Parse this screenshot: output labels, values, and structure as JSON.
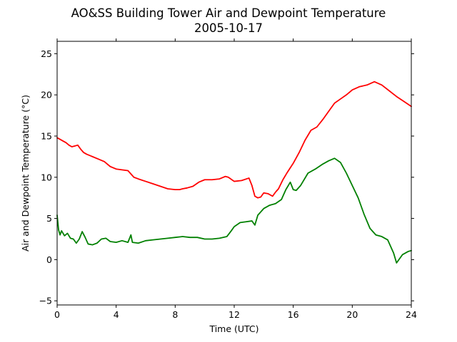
{
  "chart_data": {
    "type": "line",
    "title": "AO&SS Building Tower Air and Dewpoint Temperature",
    "subtitle": "2005-10-17",
    "xlabel": "Time (UTC)",
    "ylabel": "Air and Dewpoint Temperature (°C)",
    "xlim": [
      0,
      24
    ],
    "ylim": [
      -5.5,
      26.5
    ],
    "xticks": [
      0,
      4,
      8,
      12,
      16,
      20,
      24
    ],
    "yticks": [
      -5,
      0,
      5,
      10,
      15,
      20,
      25
    ],
    "grid": false,
    "series": [
      {
        "color": "#ff0000",
        "x": [
          0,
          0.2,
          0.4,
          0.6,
          0.8,
          1.0,
          1.2,
          1.4,
          1.6,
          1.8,
          2.0,
          2.4,
          2.8,
          3.2,
          3.4,
          3.6,
          4.0,
          4.4,
          4.8,
          5.0,
          5.2,
          5.5,
          6.0,
          6.5,
          7.0,
          7.5,
          8.0,
          8.3,
          8.5,
          8.8,
          9.2,
          9.6,
          10.0,
          10.5,
          11.0,
          11.4,
          11.6,
          12.0,
          12.5,
          13.0,
          13.2,
          13.4,
          13.6,
          13.8,
          14.0,
          14.3,
          14.6,
          14.8,
          15.0,
          15.3,
          15.6,
          16.0,
          16.4,
          16.8,
          17.2,
          17.6,
          18.0,
          18.4,
          18.8,
          19.2,
          19.6,
          20.0,
          20.5,
          21.0,
          21.5,
          22.0,
          22.5,
          23.0,
          23.5,
          24.0
        ],
        "y": [
          14.8,
          14.6,
          14.4,
          14.2,
          13.9,
          13.7,
          13.8,
          13.9,
          13.4,
          13.0,
          12.8,
          12.5,
          12.2,
          11.9,
          11.6,
          11.3,
          11.0,
          10.9,
          10.8,
          10.4,
          10.0,
          9.8,
          9.5,
          9.2,
          8.9,
          8.6,
          8.5,
          8.5,
          8.6,
          8.7,
          8.9,
          9.4,
          9.7,
          9.7,
          9.8,
          10.1,
          10.0,
          9.5,
          9.6,
          9.9,
          9.0,
          7.7,
          7.5,
          7.6,
          8.1,
          8.0,
          7.7,
          8.2,
          8.6,
          9.7,
          10.6,
          11.7,
          13.0,
          14.5,
          15.7,
          16.1,
          17.0,
          18.0,
          19.0,
          19.5,
          20.0,
          20.6,
          21.0,
          21.2,
          21.6,
          21.2,
          20.5,
          19.8,
          19.2,
          18.6
        ]
      },
      {
        "color": "#008000",
        "x": [
          0,
          0.1,
          0.2,
          0.3,
          0.5,
          0.7,
          0.9,
          1.1,
          1.3,
          1.5,
          1.7,
          1.9,
          2.1,
          2.4,
          2.7,
          3.0,
          3.3,
          3.6,
          4.0,
          4.4,
          4.8,
          5.0,
          5.1,
          5.5,
          6.0,
          6.5,
          7.0,
          7.5,
          8.0,
          8.5,
          9.0,
          9.5,
          10.0,
          10.5,
          11.0,
          11.5,
          11.8,
          12.0,
          12.4,
          12.8,
          13.2,
          13.4,
          13.6,
          14.0,
          14.4,
          14.8,
          15.2,
          15.5,
          15.8,
          16.0,
          16.2,
          16.5,
          17.0,
          17.5,
          18.0,
          18.4,
          18.8,
          19.2,
          19.6,
          20.0,
          20.4,
          20.8,
          21.2,
          21.6,
          22.0,
          22.4,
          22.8,
          23.0,
          23.4,
          23.8,
          24.0
        ],
        "y": [
          5.4,
          3.6,
          3.0,
          3.5,
          2.9,
          3.2,
          2.6,
          2.5,
          2.0,
          2.5,
          3.4,
          2.7,
          1.9,
          1.8,
          2.0,
          2.5,
          2.6,
          2.2,
          2.1,
          2.3,
          2.1,
          3.0,
          2.1,
          2.0,
          2.3,
          2.4,
          2.5,
          2.6,
          2.7,
          2.8,
          2.7,
          2.7,
          2.5,
          2.5,
          2.6,
          2.8,
          3.5,
          4.0,
          4.5,
          4.6,
          4.7,
          4.2,
          5.4,
          6.2,
          6.6,
          6.8,
          7.3,
          8.5,
          9.4,
          8.5,
          8.4,
          9.0,
          10.5,
          11.0,
          11.6,
          12.0,
          12.3,
          11.8,
          10.5,
          9.0,
          7.5,
          5.5,
          3.8,
          3.0,
          2.8,
          2.4,
          0.8,
          -0.4,
          0.6,
          1.0,
          1.1
        ]
      }
    ]
  }
}
